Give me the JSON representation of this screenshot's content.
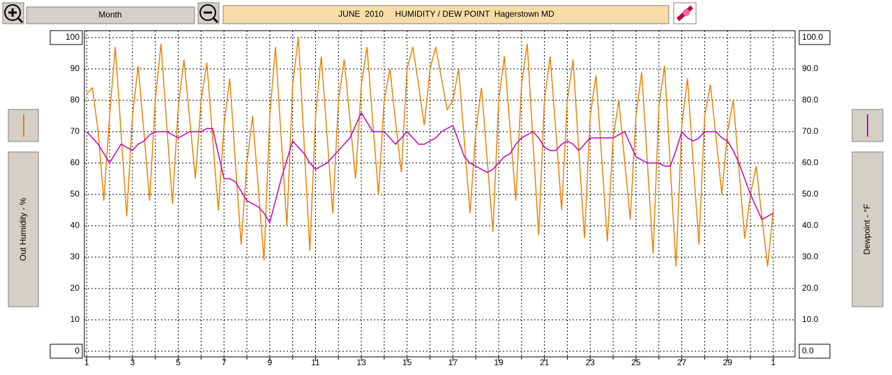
{
  "toolbar": {
    "range_button": "Month"
  },
  "chart_data": {
    "type": "line",
    "title": "JUNE  2010     HUMIDITY / DEW POINT  Hagerstown MD",
    "ylabel": "Out Humidity - %",
    "y2label": "Dewpoint - °F",
    "xlim": [
      0.9,
      31.95
    ],
    "xticks": [
      1,
      3,
      5,
      7,
      9,
      11,
      13,
      15,
      17,
      19,
      21,
      23,
      25,
      27,
      29,
      {
        "value": 31,
        "label": "1"
      }
    ],
    "xminor_ticks": [
      2,
      4,
      6,
      8,
      10,
      12,
      14,
      16,
      18,
      20,
      22,
      24,
      26,
      28,
      30
    ],
    "ylim": [
      -1.8,
      102.2
    ],
    "yticks": [
      0,
      10,
      20,
      30,
      40,
      50,
      60,
      70,
      80,
      90,
      100
    ],
    "y2lim": [
      -1.8,
      102.2
    ],
    "y2ticks": [
      {
        "value": 0,
        "label": "0.0"
      },
      {
        "value": 10,
        "label": "10.0"
      },
      {
        "value": 20,
        "label": "20.0"
      },
      {
        "value": 30,
        "label": "30.0"
      },
      {
        "value": 40,
        "label": "40.0"
      },
      {
        "value": 50,
        "label": "50.0"
      },
      {
        "value": 60,
        "label": "60.0"
      },
      {
        "value": 70,
        "label": "70.0"
      },
      {
        "value": 80,
        "label": "80.0"
      },
      {
        "value": 90,
        "label": "90.0"
      },
      {
        "value": 100,
        "label": "100.0"
      }
    ],
    "grid": true,
    "x": [
      1,
      1.25,
      1.5,
      1.75,
      2,
      2.25,
      2.5,
      2.75,
      3,
      3.25,
      3.5,
      3.75,
      4,
      4.25,
      4.5,
      4.75,
      5,
      5.25,
      5.5,
      5.75,
      6,
      6.25,
      6.5,
      6.75,
      7,
      7.25,
      7.5,
      7.75,
      8,
      8.25,
      8.5,
      8.75,
      9,
      9.25,
      9.5,
      9.75,
      10,
      10.25,
      10.5,
      10.75,
      11,
      11.25,
      11.5,
      11.75,
      12,
      12.25,
      12.5,
      12.75,
      13,
      13.25,
      13.5,
      13.75,
      14,
      14.25,
      14.5,
      14.75,
      15,
      15.25,
      15.5,
      15.75,
      16,
      16.25,
      16.5,
      16.75,
      17,
      17.25,
      17.5,
      17.75,
      18,
      18.25,
      18.5,
      18.75,
      19,
      19.25,
      19.5,
      19.75,
      20,
      20.25,
      20.5,
      20.75,
      21,
      21.25,
      21.5,
      21.75,
      22,
      22.25,
      22.5,
      22.75,
      23,
      23.25,
      23.5,
      23.75,
      24,
      24.25,
      24.5,
      24.75,
      25,
      25.25,
      25.5,
      25.75,
      26,
      26.25,
      26.5,
      26.75,
      27,
      27.25,
      27.5,
      27.75,
      28,
      28.25,
      28.5,
      28.75,
      29,
      29.25,
      29.5,
      29.75,
      30,
      30.25,
      30.5,
      30.75,
      31
    ],
    "series": [
      {
        "color": "#f08000",
        "axis": "y",
        "values": [
          82,
          84,
          70,
          48,
          75,
          97,
          70,
          43,
          75,
          91,
          70,
          48,
          80,
          98,
          72,
          47,
          78,
          93,
          74,
          55,
          80,
          92,
          68,
          45,
          72,
          87,
          60,
          34,
          60,
          75,
          52,
          29,
          75,
          97,
          68,
          40,
          85,
          100,
          66,
          32,
          75,
          94,
          69,
          44,
          80,
          93,
          74,
          55,
          85,
          97,
          73,
          50,
          80,
          90,
          73,
          57,
          90,
          97,
          85,
          72,
          90,
          97,
          87,
          77,
          80,
          90,
          67,
          44,
          70,
          84,
          61,
          38,
          80,
          94,
          71,
          48,
          85,
          98,
          67,
          37,
          80,
          94,
          70,
          45,
          80,
          93,
          64,
          36,
          75,
          88,
          62,
          35,
          68,
          80,
          61,
          42,
          75,
          89,
          60,
          31,
          78,
          91,
          59,
          27,
          72,
          87,
          60,
          34,
          75,
          85,
          68,
          50,
          70,
          80,
          58,
          36,
          50,
          59,
          43,
          27,
          45
        ]
      },
      {
        "color": "#c000c0",
        "axis": "y2",
        "values": [
          70,
          68,
          66,
          63,
          60,
          63,
          66,
          65,
          64,
          66,
          67,
          69,
          70,
          70,
          70,
          69,
          68,
          69,
          70,
          70,
          70,
          71,
          71,
          63,
          55,
          55,
          54,
          51,
          48,
          47,
          46,
          44,
          41,
          48,
          55,
          61,
          67,
          65,
          63,
          60,
          58,
          59,
          60,
          62,
          64,
          66,
          68,
          72,
          76,
          73,
          70,
          70,
          70,
          68,
          66,
          68,
          70,
          68,
          66,
          66,
          67,
          68,
          70,
          71,
          72,
          67,
          62,
          60,
          59,
          58,
          57,
          58,
          60,
          62,
          63,
          66,
          68,
          69,
          70,
          68,
          65,
          64,
          64,
          66,
          67,
          66,
          64,
          66,
          68,
          68,
          68,
          68,
          68,
          69,
          70,
          66,
          62,
          61,
          60,
          60,
          60,
          59,
          59,
          64,
          70,
          68,
          67,
          68,
          70,
          70,
          70,
          68,
          67,
          64,
          60,
          55,
          50,
          46,
          42,
          43,
          44
        ]
      }
    ]
  }
}
